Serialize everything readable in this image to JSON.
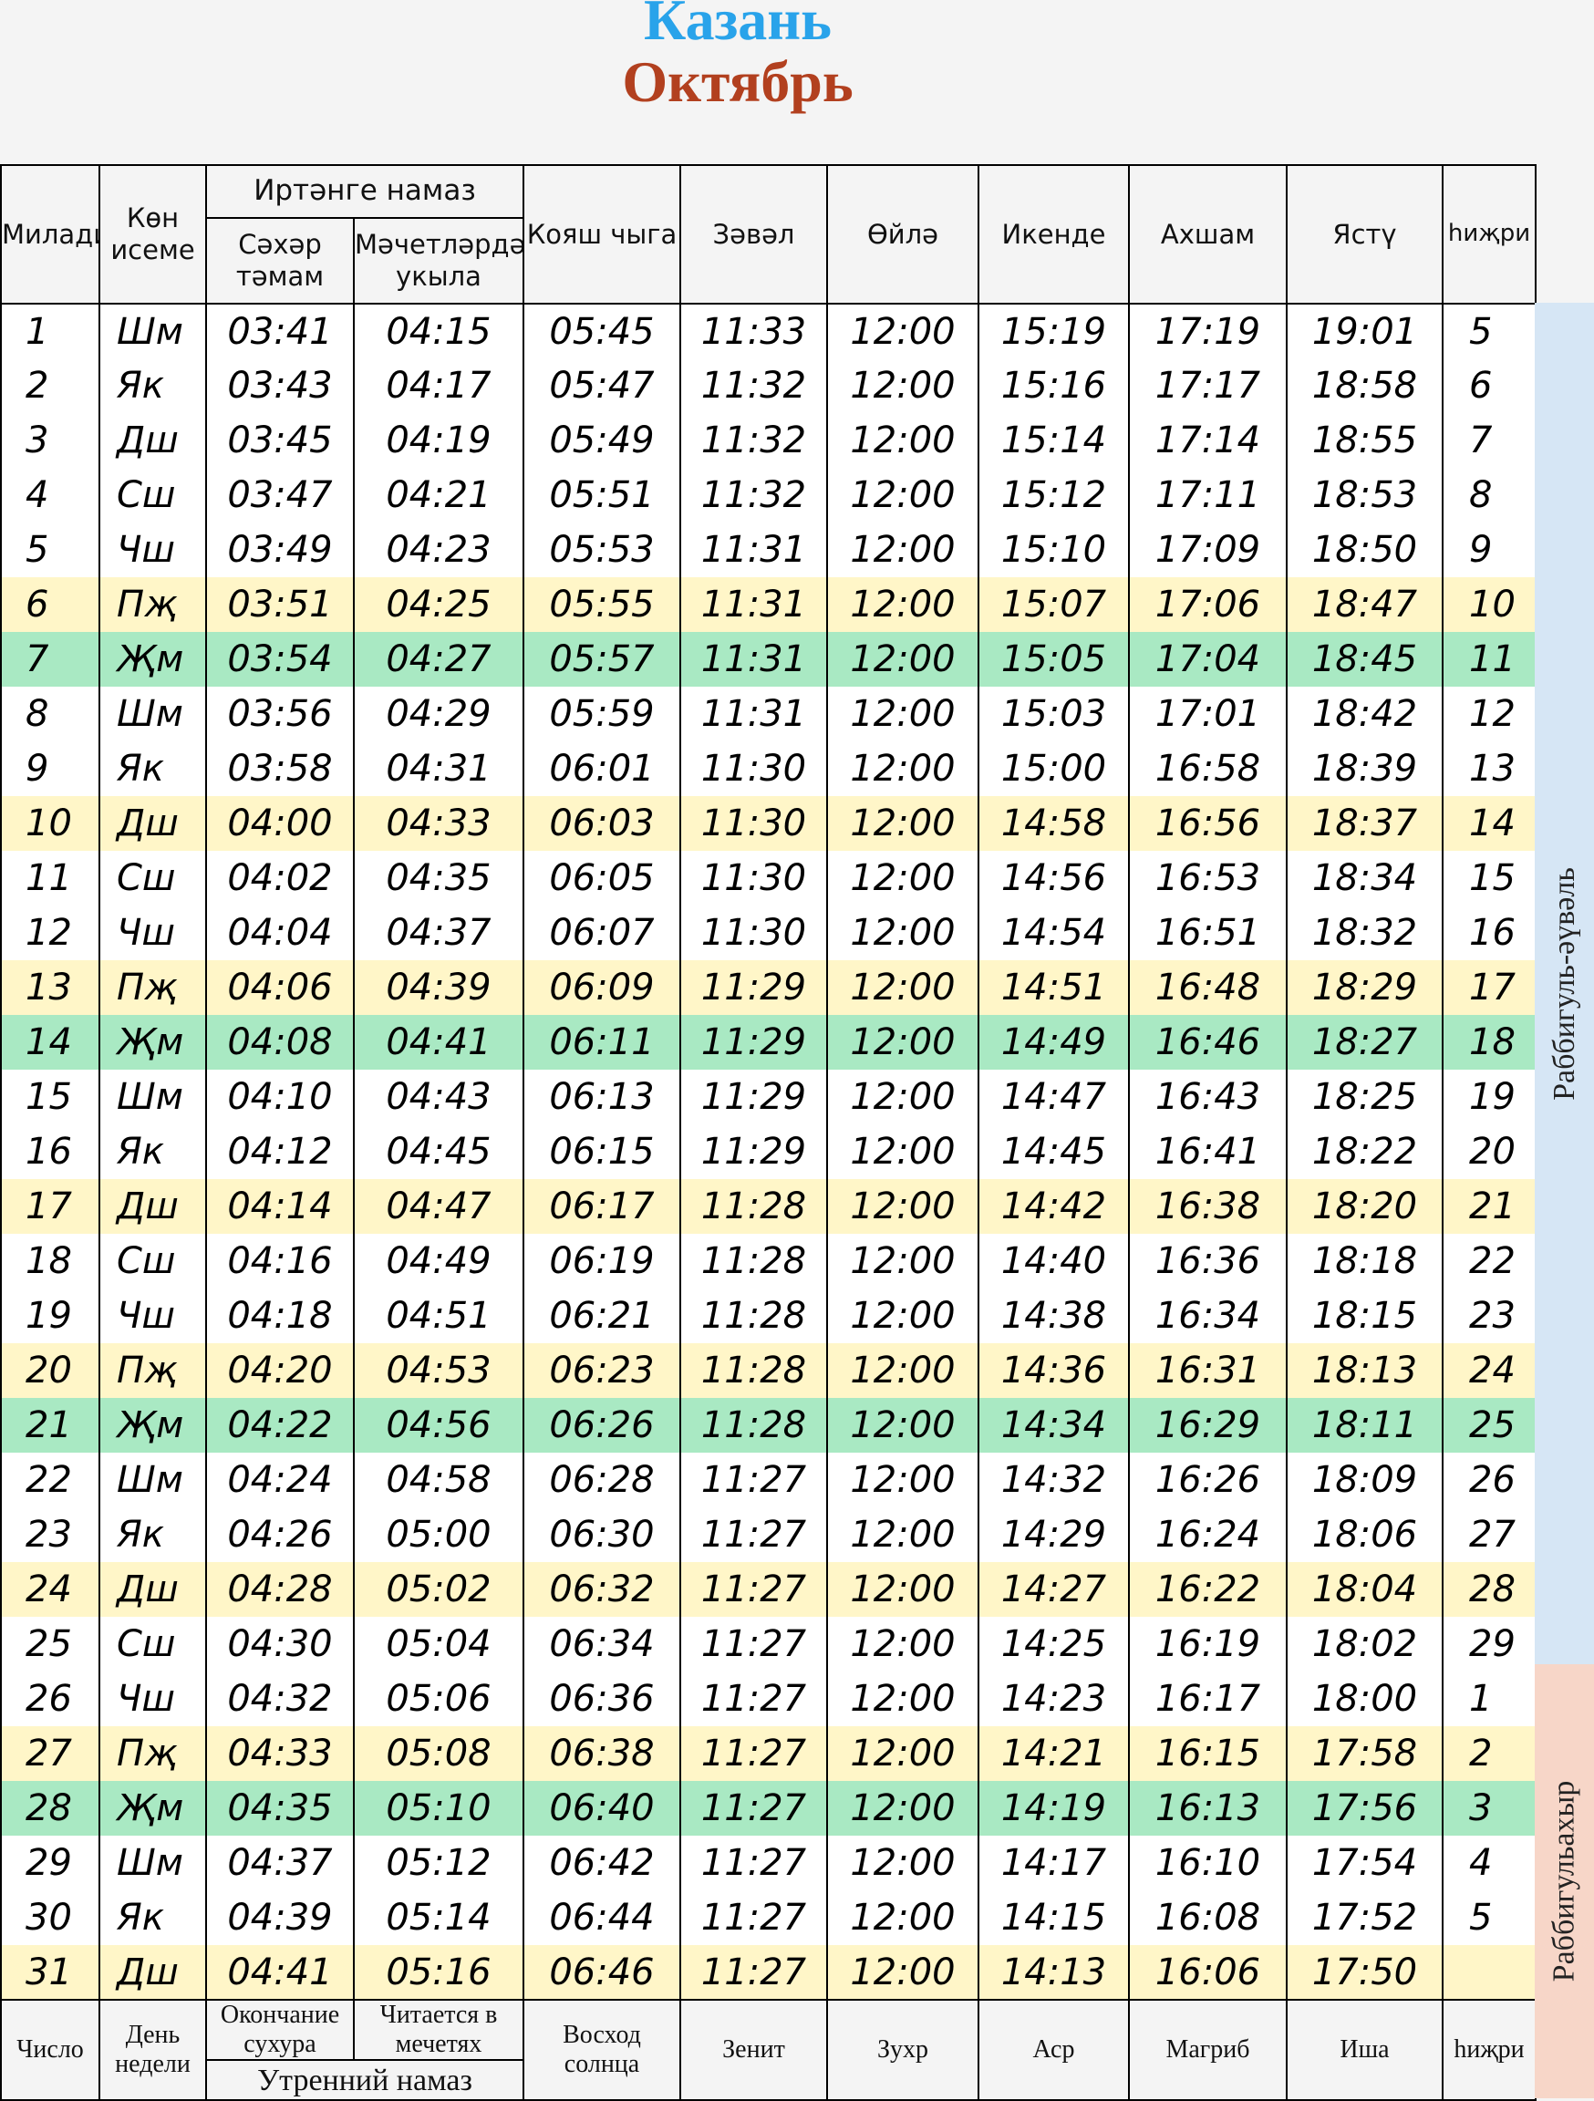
{
  "header": {
    "city": "Казань",
    "month": "Октябрь",
    "city_color": "#29a3ea",
    "month_color": "#b2401f"
  },
  "columns": {
    "miladi": "Милади",
    "day_name": "Көн исеме",
    "morning_group": "Иртәнге намаз",
    "sahar": "Сәхәр тәмам",
    "mosque": "Мәчетләрдә укыла",
    "sunrise": "Кояш чыга",
    "zawal": "Зәвәл",
    "oyla": "Өйлә",
    "ikende": "Икенде",
    "akhsham": "Ахшам",
    "yastu": "Ястү",
    "hijri": "һиҗри"
  },
  "footer": {
    "number": "Число",
    "day_of_week": "День недели",
    "suhur_end": "Окончание сухура",
    "in_mosques": "Читается в мечетях",
    "sunrise": "Восход солнца",
    "zenith": "Зенит",
    "zuhr": "Зухр",
    "asr": "Аср",
    "maghrib": "Магриб",
    "isha": "Иша",
    "hijri": "һиҗри",
    "morning_group": "Утренний  намаз"
  },
  "hijri_months": [
    {
      "name": "Раббигуль-әүвәль",
      "color": "#d6e6f5"
    },
    {
      "name": "Раббигульахыр",
      "color": "#f7d6c8"
    }
  ],
  "row_colors": {
    "thursday": "#fff6c8",
    "friday": "#a9e9c3",
    "normal": "#ffffff"
  },
  "rows": [
    {
      "d": "1",
      "w": "Шм",
      "sahar": "03:41",
      "mosque": "04:15",
      "sunrise": "05:45",
      "zawal": "11:33",
      "oyla": "12:00",
      "ikende": "15:19",
      "akhsham": "17:19",
      "yastu": "19:01",
      "hijri": "5",
      "hl": "normal"
    },
    {
      "d": "2",
      "w": "Як",
      "sahar": "03:43",
      "mosque": "04:17",
      "sunrise": "05:47",
      "zawal": "11:32",
      "oyla": "12:00",
      "ikende": "15:16",
      "akhsham": "17:17",
      "yastu": "18:58",
      "hijri": "6",
      "hl": "normal"
    },
    {
      "d": "3",
      "w": "Дш",
      "sahar": "03:45",
      "mosque": "04:19",
      "sunrise": "05:49",
      "zawal": "11:32",
      "oyla": "12:00",
      "ikende": "15:14",
      "akhsham": "17:14",
      "yastu": "18:55",
      "hijri": "7",
      "hl": "normal"
    },
    {
      "d": "4",
      "w": "Сш",
      "sahar": "03:47",
      "mosque": "04:21",
      "sunrise": "05:51",
      "zawal": "11:32",
      "oyla": "12:00",
      "ikende": "15:12",
      "akhsham": "17:11",
      "yastu": "18:53",
      "hijri": "8",
      "hl": "normal"
    },
    {
      "d": "5",
      "w": "Чш",
      "sahar": "03:49",
      "mosque": "04:23",
      "sunrise": "05:53",
      "zawal": "11:31",
      "oyla": "12:00",
      "ikende": "15:10",
      "akhsham": "17:09",
      "yastu": "18:50",
      "hijri": "9",
      "hl": "normal"
    },
    {
      "d": "6",
      "w": "Пҗ",
      "sahar": "03:51",
      "mosque": "04:25",
      "sunrise": "05:55",
      "zawal": "11:31",
      "oyla": "12:00",
      "ikende": "15:07",
      "akhsham": "17:06",
      "yastu": "18:47",
      "hijri": "10",
      "hl": "thu"
    },
    {
      "d": "7",
      "w": "Җм",
      "sahar": "03:54",
      "mosque": "04:27",
      "sunrise": "05:57",
      "zawal": "11:31",
      "oyla": "12:00",
      "ikende": "15:05",
      "akhsham": "17:04",
      "yastu": "18:45",
      "hijri": "11",
      "hl": "fri"
    },
    {
      "d": "8",
      "w": "Шм",
      "sahar": "03:56",
      "mosque": "04:29",
      "sunrise": "05:59",
      "zawal": "11:31",
      "oyla": "12:00",
      "ikende": "15:03",
      "akhsham": "17:01",
      "yastu": "18:42",
      "hijri": "12",
      "hl": "normal"
    },
    {
      "d": "9",
      "w": "Як",
      "sahar": "03:58",
      "mosque": "04:31",
      "sunrise": "06:01",
      "zawal": "11:30",
      "oyla": "12:00",
      "ikende": "15:00",
      "akhsham": "16:58",
      "yastu": "18:39",
      "hijri": "13",
      "hl": "normal"
    },
    {
      "d": "10",
      "w": "Дш",
      "sahar": "04:00",
      "mosque": "04:33",
      "sunrise": "06:03",
      "zawal": "11:30",
      "oyla": "12:00",
      "ikende": "14:58",
      "akhsham": "16:56",
      "yastu": "18:37",
      "hijri": "14",
      "hl": "thu"
    },
    {
      "d": "11",
      "w": "Сш",
      "sahar": "04:02",
      "mosque": "04:35",
      "sunrise": "06:05",
      "zawal": "11:30",
      "oyla": "12:00",
      "ikende": "14:56",
      "akhsham": "16:53",
      "yastu": "18:34",
      "hijri": "15",
      "hl": "normal"
    },
    {
      "d": "12",
      "w": "Чш",
      "sahar": "04:04",
      "mosque": "04:37",
      "sunrise": "06:07",
      "zawal": "11:30",
      "oyla": "12:00",
      "ikende": "14:54",
      "akhsham": "16:51",
      "yastu": "18:32",
      "hijri": "16",
      "hl": "normal"
    },
    {
      "d": "13",
      "w": "Пҗ",
      "sahar": "04:06",
      "mosque": "04:39",
      "sunrise": "06:09",
      "zawal": "11:29",
      "oyla": "12:00",
      "ikende": "14:51",
      "akhsham": "16:48",
      "yastu": "18:29",
      "hijri": "17",
      "hl": "thu"
    },
    {
      "d": "14",
      "w": "Җм",
      "sahar": "04:08",
      "mosque": "04:41",
      "sunrise": "06:11",
      "zawal": "11:29",
      "oyla": "12:00",
      "ikende": "14:49",
      "akhsham": "16:46",
      "yastu": "18:27",
      "hijri": "18",
      "hl": "fri"
    },
    {
      "d": "15",
      "w": "Шм",
      "sahar": "04:10",
      "mosque": "04:43",
      "sunrise": "06:13",
      "zawal": "11:29",
      "oyla": "12:00",
      "ikende": "14:47",
      "akhsham": "16:43",
      "yastu": "18:25",
      "hijri": "19",
      "hl": "normal"
    },
    {
      "d": "16",
      "w": "Як",
      "sahar": "04:12",
      "mosque": "04:45",
      "sunrise": "06:15",
      "zawal": "11:29",
      "oyla": "12:00",
      "ikende": "14:45",
      "akhsham": "16:41",
      "yastu": "18:22",
      "hijri": "20",
      "hl": "normal"
    },
    {
      "d": "17",
      "w": "Дш",
      "sahar": "04:14",
      "mosque": "04:47",
      "sunrise": "06:17",
      "zawal": "11:28",
      "oyla": "12:00",
      "ikende": "14:42",
      "akhsham": "16:38",
      "yastu": "18:20",
      "hijri": "21",
      "hl": "thu"
    },
    {
      "d": "18",
      "w": "Сш",
      "sahar": "04:16",
      "mosque": "04:49",
      "sunrise": "06:19",
      "zawal": "11:28",
      "oyla": "12:00",
      "ikende": "14:40",
      "akhsham": "16:36",
      "yastu": "18:18",
      "hijri": "22",
      "hl": "normal"
    },
    {
      "d": "19",
      "w": "Чш",
      "sahar": "04:18",
      "mosque": "04:51",
      "sunrise": "06:21",
      "zawal": "11:28",
      "oyla": "12:00",
      "ikende": "14:38",
      "akhsham": "16:34",
      "yastu": "18:15",
      "hijri": "23",
      "hl": "normal"
    },
    {
      "d": "20",
      "w": "Пҗ",
      "sahar": "04:20",
      "mosque": "04:53",
      "sunrise": "06:23",
      "zawal": "11:28",
      "oyla": "12:00",
      "ikende": "14:36",
      "akhsham": "16:31",
      "yastu": "18:13",
      "hijri": "24",
      "hl": "thu"
    },
    {
      "d": "21",
      "w": "Җм",
      "sahar": "04:22",
      "mosque": "04:56",
      "sunrise": "06:26",
      "zawal": "11:28",
      "oyla": "12:00",
      "ikende": "14:34",
      "akhsham": "16:29",
      "yastu": "18:11",
      "hijri": "25",
      "hl": "fri"
    },
    {
      "d": "22",
      "w": "Шм",
      "sahar": "04:24",
      "mosque": "04:58",
      "sunrise": "06:28",
      "zawal": "11:27",
      "oyla": "12:00",
      "ikende": "14:32",
      "akhsham": "16:26",
      "yastu": "18:09",
      "hijri": "26",
      "hl": "normal"
    },
    {
      "d": "23",
      "w": "Як",
      "sahar": "04:26",
      "mosque": "05:00",
      "sunrise": "06:30",
      "zawal": "11:27",
      "oyla": "12:00",
      "ikende": "14:29",
      "akhsham": "16:24",
      "yastu": "18:06",
      "hijri": "27",
      "hl": "normal"
    },
    {
      "d": "24",
      "w": "Дш",
      "sahar": "04:28",
      "mosque": "05:02",
      "sunrise": "06:32",
      "zawal": "11:27",
      "oyla": "12:00",
      "ikende": "14:27",
      "akhsham": "16:22",
      "yastu": "18:04",
      "hijri": "28",
      "hl": "thu"
    },
    {
      "d": "25",
      "w": "Сш",
      "sahar": "04:30",
      "mosque": "05:04",
      "sunrise": "06:34",
      "zawal": "11:27",
      "oyla": "12:00",
      "ikende": "14:25",
      "akhsham": "16:19",
      "yastu": "18:02",
      "hijri": "29",
      "hl": "normal"
    },
    {
      "d": "26",
      "w": "Чш",
      "sahar": "04:32",
      "mosque": "05:06",
      "sunrise": "06:36",
      "zawal": "11:27",
      "oyla": "12:00",
      "ikende": "14:23",
      "akhsham": "16:17",
      "yastu": "18:00",
      "hijri": "1",
      "hl": "normal"
    },
    {
      "d": "27",
      "w": "Пҗ",
      "sahar": "04:33",
      "mosque": "05:08",
      "sunrise": "06:38",
      "zawal": "11:27",
      "oyla": "12:00",
      "ikende": "14:21",
      "akhsham": "16:15",
      "yastu": "17:58",
      "hijri": "2",
      "hl": "thu"
    },
    {
      "d": "28",
      "w": "Җм",
      "sahar": "04:35",
      "mosque": "05:10",
      "sunrise": "06:40",
      "zawal": "11:27",
      "oyla": "12:00",
      "ikende": "14:19",
      "akhsham": "16:13",
      "yastu": "17:56",
      "hijri": "3",
      "hl": "fri"
    },
    {
      "d": "29",
      "w": "Шм",
      "sahar": "04:37",
      "mosque": "05:12",
      "sunrise": "06:42",
      "zawal": "11:27",
      "oyla": "12:00",
      "ikende": "14:17",
      "akhsham": "16:10",
      "yastu": "17:54",
      "hijri": "4",
      "hl": "normal"
    },
    {
      "d": "30",
      "w": "Як",
      "sahar": "04:39",
      "mosque": "05:14",
      "sunrise": "06:44",
      "zawal": "11:27",
      "oyla": "12:00",
      "ikende": "14:15",
      "akhsham": "16:08",
      "yastu": "17:52",
      "hijri": "5",
      "hl": "normal"
    },
    {
      "d": "31",
      "w": "Дш",
      "sahar": "04:41",
      "mosque": "05:16",
      "sunrise": "06:46",
      "zawal": "11:27",
      "oyla": "12:00",
      "ikende": "14:13",
      "akhsham": "16:06",
      "yastu": "17:50",
      "hijri": "",
      "hl": "thu"
    }
  ]
}
